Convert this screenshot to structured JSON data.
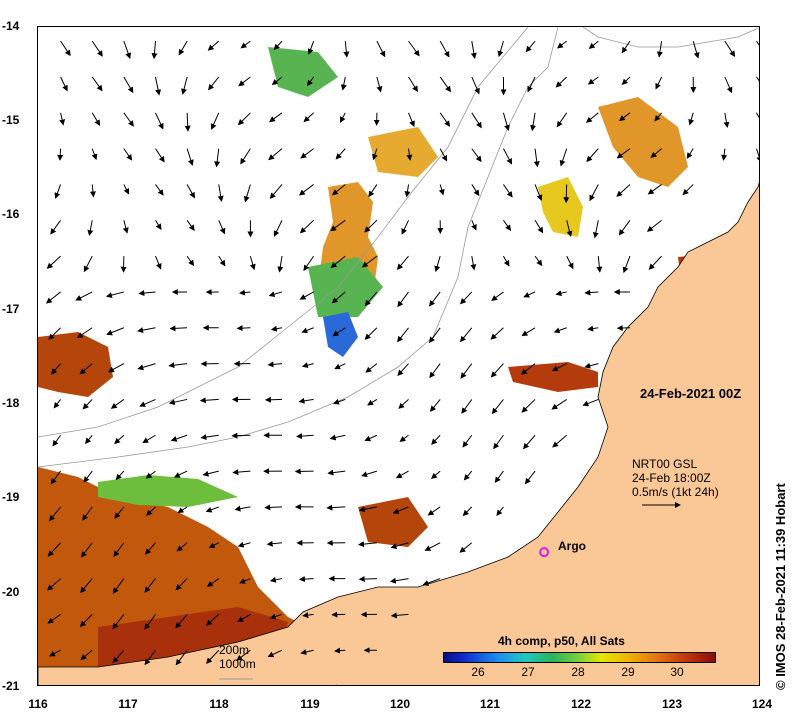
{
  "map": {
    "y_ticks": [
      "-14",
      "-15",
      "-16",
      "-17",
      "-18",
      "-19",
      "-20",
      "-21"
    ],
    "x_ticks": [
      "116",
      "117",
      "118",
      "119",
      "120",
      "121",
      "122",
      "123",
      "124"
    ],
    "lon_range": [
      116,
      124
    ],
    "lat_range": [
      -21,
      -14
    ],
    "date_label": "24-Feb-2021 00Z",
    "vector_legend": {
      "line1": "NRT00 GSL",
      "line2": "24-Feb 18:00Z",
      "line3": "0.5m/s (1kt 24h)"
    },
    "argo": {
      "label": "Argo",
      "lon": 121.6,
      "lat": -19.57,
      "color": "#e020e0"
    },
    "bathymetry": {
      "label_200": "200m",
      "label_1000": "1000m"
    },
    "colorbar": {
      "title": "4h comp, p50, All Sats",
      "ticks": [
        "26",
        "27",
        "28",
        "29",
        "30"
      ],
      "range": [
        25.3,
        30.7
      ]
    },
    "credit": "© IMOS 28-Feb-2021 11:39 Hobart",
    "colors": {
      "land": "#fac896",
      "contour": "#999999",
      "sst_warm": "#c8500a"
    }
  }
}
